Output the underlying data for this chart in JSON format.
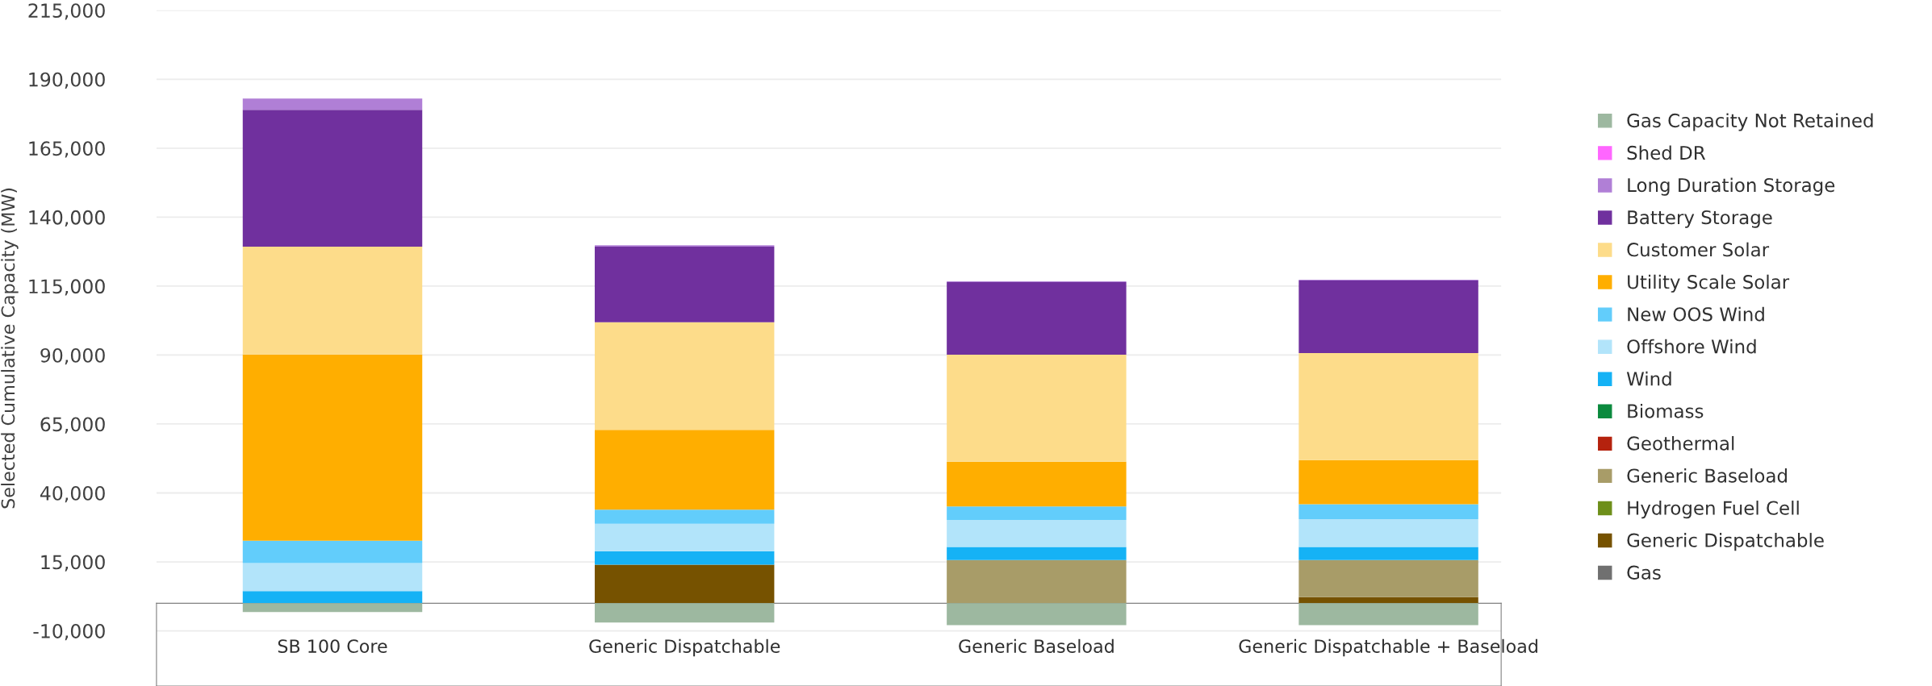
{
  "chart_data": {
    "type": "bar",
    "stacked": true,
    "ylabel": "Selected Cumulative Capacity (MW)",
    "categories": [
      "SB 100 Core",
      "Generic Dispatchable",
      "Generic Baseload",
      "Generic Dispatchable + Baseload"
    ],
    "series": [
      {
        "name": "Gas",
        "color": "#707070",
        "values": [
          0,
          0,
          0,
          0
        ]
      },
      {
        "name": "Generic Dispatchable",
        "color": "#765200",
        "values": [
          0,
          14000,
          0,
          2200
        ]
      },
      {
        "name": "Hydrogen Fuel Cell",
        "color": "#6e8f1a",
        "values": [
          0,
          0,
          0,
          0
        ]
      },
      {
        "name": "Generic Baseload",
        "color": "#a89c68",
        "values": [
          0,
          0,
          15700,
          13500
        ]
      },
      {
        "name": "Geothermal",
        "color": "#b5220e",
        "values": [
          0,
          0,
          0,
          0
        ]
      },
      {
        "name": "Biomass",
        "color": "#0b8a3e",
        "values": [
          0,
          0,
          0,
          0
        ]
      },
      {
        "name": "Wind",
        "color": "#15b2f5",
        "values": [
          4400,
          4900,
          4700,
          4700
        ]
      },
      {
        "name": "Offshore Wind",
        "color": "#b2e4fa",
        "values": [
          10200,
          9900,
          9800,
          10100
        ]
      },
      {
        "name": "New OOS Wind",
        "color": "#62cdfb",
        "values": [
          8100,
          5100,
          4900,
          5400
        ]
      },
      {
        "name": "Utility Scale Solar",
        "color": "#ffae00",
        "values": [
          67500,
          29000,
          16200,
          16000
        ]
      },
      {
        "name": "Customer Solar",
        "color": "#fddc8a",
        "values": [
          39100,
          39000,
          38800,
          38800
        ]
      },
      {
        "name": "Battery Storage",
        "color": "#70309e",
        "values": [
          49600,
          27400,
          26300,
          26300
        ]
      },
      {
        "name": "Long Duration Storage",
        "color": "#b07fd6",
        "values": [
          4100,
          500,
          300,
          300
        ]
      },
      {
        "name": "Shed DR",
        "color": "#ff66ff",
        "values": [
          0,
          0,
          0,
          0
        ]
      },
      {
        "name": "Gas Capacity Not Retained",
        "color": "#9db8a0",
        "values": [
          -3200,
          -7000,
          -7900,
          -7900
        ]
      }
    ],
    "ylim": [
      -30000,
      215000
    ],
    "yticks": [
      {
        "value": -10000,
        "label": "-10,000"
      },
      {
        "value": 15000,
        "label": "15,000"
      },
      {
        "value": 40000,
        "label": "40,000"
      },
      {
        "value": 65000,
        "label": "65,000"
      },
      {
        "value": 90000,
        "label": "90,000"
      },
      {
        "value": 115000,
        "label": "115,000"
      },
      {
        "value": 140000,
        "label": "140,000"
      },
      {
        "value": 165000,
        "label": "165,000"
      },
      {
        "value": 190000,
        "label": "190,000"
      },
      {
        "value": 215000,
        "label": "215,000"
      }
    ],
    "grid": "y",
    "legend": "right"
  }
}
